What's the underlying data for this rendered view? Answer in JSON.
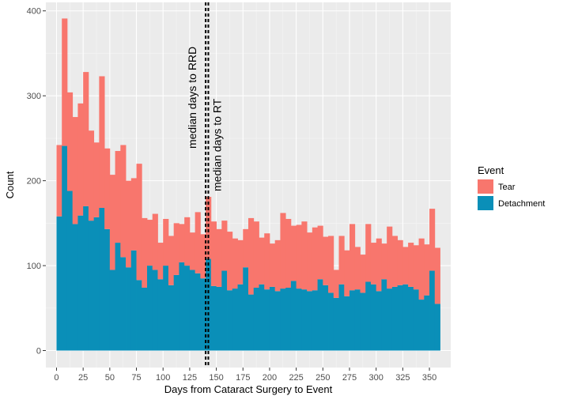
{
  "chart_data": {
    "type": "bar",
    "stacked": true,
    "xlabel": "Days from Cataract Surgery to Event",
    "ylabel": "Count",
    "xlim": [
      -10,
      370
    ],
    "ylim": [
      -20,
      410
    ],
    "x_ticks": [
      0,
      25,
      50,
      75,
      100,
      125,
      150,
      175,
      200,
      225,
      250,
      275,
      300,
      325,
      350
    ],
    "y_ticks": [
      0,
      100,
      200,
      300,
      400
    ],
    "bin_width": 5,
    "grid": true,
    "legend": {
      "title": "Event",
      "position": "right",
      "entries": [
        {
          "label": "Tear",
          "color": "#F8766D"
        },
        {
          "label": "Detachment",
          "color": "#0A8FB8"
        }
      ]
    },
    "x": [
      2.5,
      7.5,
      12.5,
      17.5,
      22.5,
      27.5,
      32.5,
      37.5,
      42.5,
      47.5,
      52.5,
      57.5,
      62.5,
      67.5,
      72.5,
      77.5,
      82.5,
      87.5,
      92.5,
      97.5,
      102.5,
      107.5,
      112.5,
      117.5,
      122.5,
      127.5,
      132.5,
      137.5,
      142.5,
      147.5,
      152.5,
      157.5,
      162.5,
      167.5,
      172.5,
      177.5,
      182.5,
      187.5,
      192.5,
      197.5,
      202.5,
      207.5,
      212.5,
      217.5,
      222.5,
      227.5,
      232.5,
      237.5,
      242.5,
      247.5,
      252.5,
      257.5,
      262.5,
      267.5,
      272.5,
      277.5,
      282.5,
      287.5,
      292.5,
      297.5,
      302.5,
      307.5,
      312.5,
      317.5,
      322.5,
      327.5,
      332.5,
      337.5,
      342.5,
      347.5,
      352.5,
      357.5,
      362.5
    ],
    "series": [
      {
        "name": "Detachment",
        "values": [
          158,
          241,
          188,
          149,
          159,
          170,
          153,
          157,
          168,
          143,
          95,
          127,
          110,
          98,
          118,
          83,
          74,
          100,
          95,
          84,
          100,
          77,
          89,
          104,
          100,
          95,
          91,
          85,
          108,
          76,
          75,
          94,
          71,
          73,
          78,
          98,
          66,
          74,
          78,
          72,
          75,
          70,
          73,
          74,
          82,
          73,
          72,
          70,
          71,
          84,
          77,
          68,
          62,
          78,
          64,
          71,
          72,
          68,
          81,
          78,
          70,
          84,
          73,
          75,
          77,
          78,
          75,
          72,
          60,
          65,
          94,
          55,
          0
        ]
      },
      {
        "name": "Tear",
        "values": [
          84,
          150,
          116,
          126,
          132,
          158,
          106,
          88,
          155,
          95,
          112,
          108,
          132,
          102,
          85,
          137,
          82,
          54,
          66,
          43,
          55,
          58,
          61,
          45,
          57,
          44,
          72,
          52,
          73,
          76,
          68,
          59,
          69,
          59,
          52,
          45,
          90,
          78,
          55,
          66,
          51,
          60,
          89,
          81,
          65,
          75,
          80,
          69,
          74,
          63,
          57,
          67,
          33,
          57,
          54,
          78,
          50,
          45,
          68,
          49,
          62,
          42,
          73,
          60,
          53,
          44,
          52,
          52,
          72,
          60,
          73,
          66,
          0
        ]
      }
    ],
    "annotations": [
      {
        "label": "median days to RRD",
        "x": 140
      },
      {
        "label": "median days to RT",
        "x": 142.5
      }
    ]
  },
  "colors": {
    "panel_bg": "#EBEBEB",
    "grid_major": "#FFFFFF",
    "grid_minor": "#F5F5F5",
    "tear": "#F8766D",
    "detachment": "#0A8FB8"
  }
}
